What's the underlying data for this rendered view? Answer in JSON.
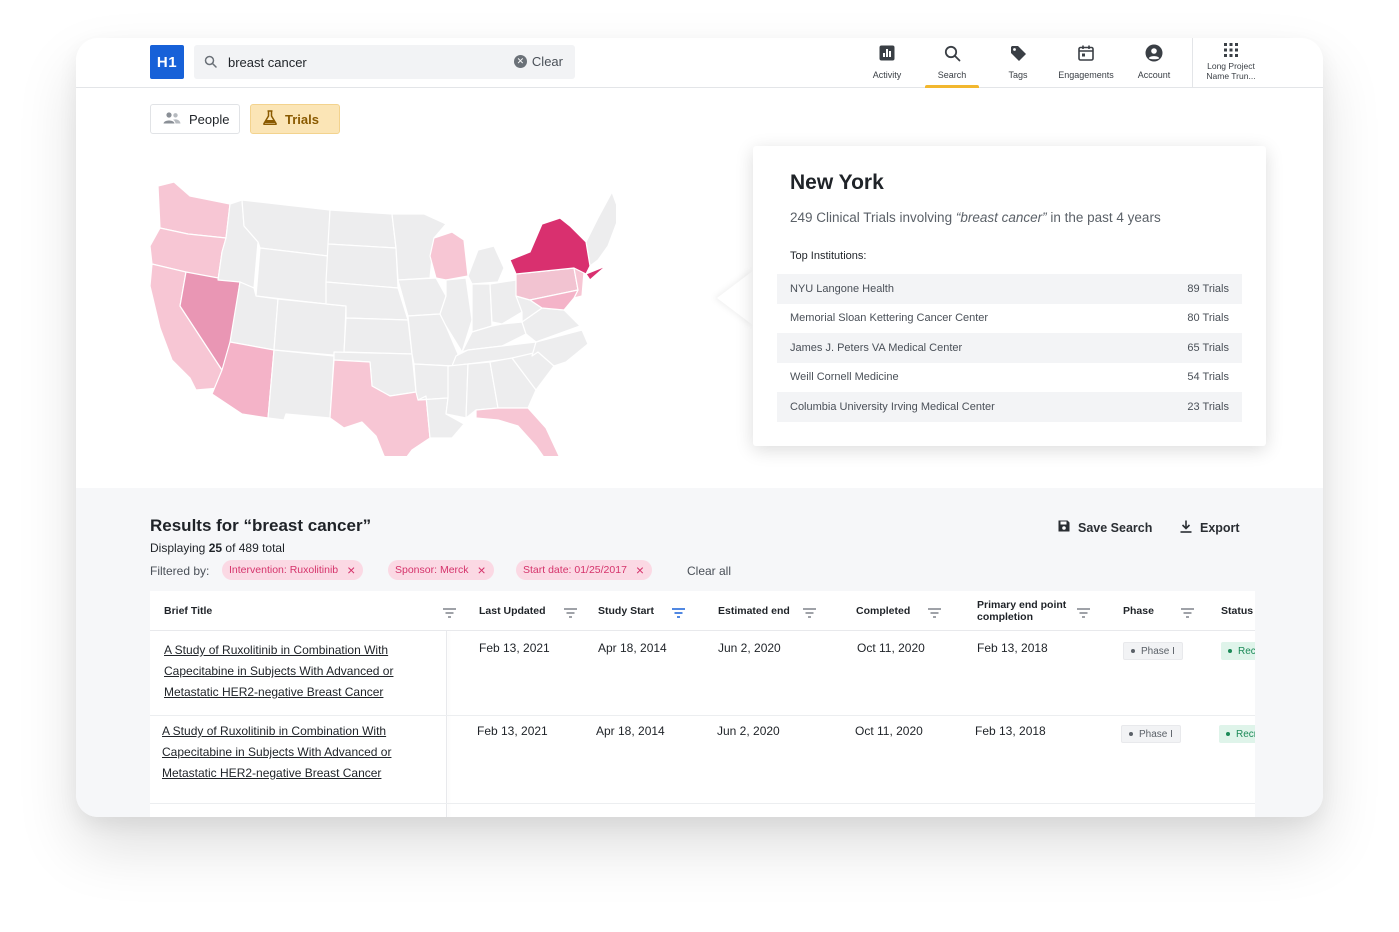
{
  "header": {
    "logo": "H1",
    "search_value": "breast cancer",
    "clear_label": "Clear",
    "nav": [
      {
        "label": "Activity",
        "icon": "chart-icon"
      },
      {
        "label": "Search",
        "icon": "search-icon"
      },
      {
        "label": "Tags",
        "icon": "tag-icon"
      },
      {
        "label": "Engagements",
        "icon": "calendar-icon"
      },
      {
        "label": "Account",
        "icon": "account-icon"
      }
    ],
    "active_nav": "Search",
    "project_label": "Long Project Name Trun..."
  },
  "toggle": {
    "people": "People",
    "trials": "Trials",
    "active": "Trials"
  },
  "map": {
    "highlight_color": "#d9306f",
    "state_colors": {
      "base": "#ededee",
      "light": "#f7c6d4",
      "medium": "#e996b4"
    },
    "highlighted_state": "New York"
  },
  "popup": {
    "title": "New York",
    "sub_prefix": "249 Clinical Trials involving ",
    "sub_query": "“breast cancer”",
    "sub_suffix": " in the past 4 years",
    "institutions_title": "Top Institutions:",
    "institutions": [
      {
        "name": "NYU Langone Health",
        "trials": "89 Trials"
      },
      {
        "name": "Memorial Sloan Kettering Cancer Center",
        "trials": "80 Trials"
      },
      {
        "name": "James J. Peters VA Medical Center",
        "trials": "65 Trials"
      },
      {
        "name": "Weill Cornell Medicine",
        "trials": "54 Trials"
      },
      {
        "name": "Columbia University Irving Medical Center",
        "trials": "23 Trials"
      }
    ]
  },
  "results": {
    "title": "Results for “breast cancer”",
    "display_prefix": "Displaying ",
    "display_count": "25",
    "display_suffix": " of 489 total",
    "filtered_by": "Filtered by:",
    "filters": [
      "Intervention: Ruxolitinib",
      "Sponsor: Merck",
      "Start date: 01/25/2017"
    ],
    "clear_all": "Clear all",
    "save_search": "Save Search",
    "export": "Export"
  },
  "table": {
    "columns": [
      "Brief Title",
      "Last Updated",
      "Study Start",
      "Estimated end",
      "Completed",
      "Primary end point completion",
      "Phase",
      "Status"
    ],
    "active_filter_column": "Study Start",
    "rows": [
      {
        "title": "A Study of Ruxolitinib in Combination With Capecitabine in Subjects With Advanced or Metastatic HER2-negative Breast Cancer",
        "title_lines": [
          "A Study of Ruxolitinib in Combination With",
          "Capecitabine in Subjects With Advanced or",
          "Metastatic HER2-negative Breast Cancer"
        ],
        "last_updated": "Feb 13, 2021",
        "study_start": "Apr 18, 2014",
        "estimated_end": "Jun 2, 2020",
        "completed": "Oct 11, 2020",
        "primary_end": "Feb 13, 2018",
        "phase": "Phase I",
        "status": "Recruiting"
      },
      {
        "title": "A Study of Ruxolitinib in Combination With Capecitabine in Subjects With Advanced or Metastatic HER2-negative Breast Cancer",
        "title_lines": [
          "A Study of Ruxolitinib in Combination With",
          "Capecitabine in Subjects With Advanced or",
          "Metastatic HER2-negative Breast Cancer"
        ],
        "last_updated": "Feb 13, 2021",
        "study_start": "Apr 18, 2014",
        "estimated_end": "Jun 2, 2020",
        "completed": "Oct 11, 2020",
        "primary_end": "Feb 13, 2018",
        "phase": "Phase I",
        "status": "Recruiting"
      }
    ]
  }
}
